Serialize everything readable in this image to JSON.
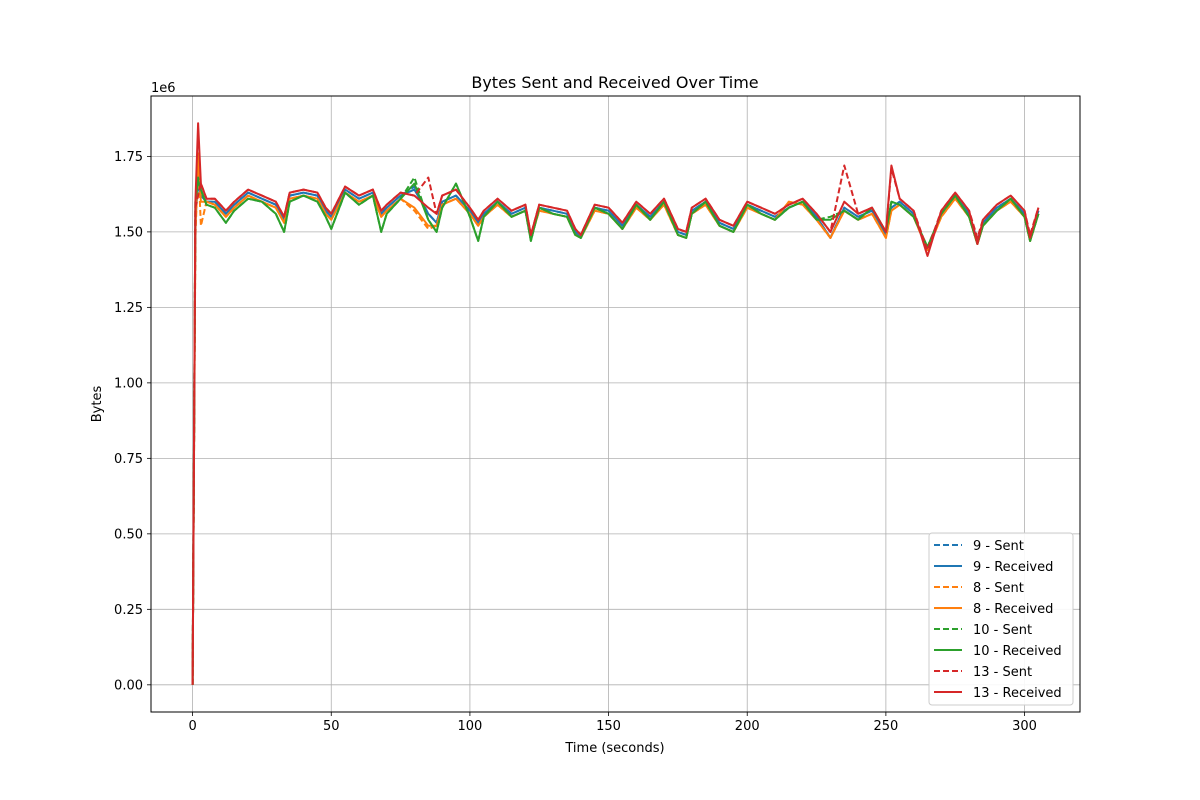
{
  "chart_data": {
    "type": "line",
    "title": "Bytes Sent and Received Over Time",
    "xlabel": "Time (seconds)",
    "ylabel": "Bytes",
    "y_offset_label": "1e6",
    "xlim": [
      -15,
      320
    ],
    "ylim": [
      -0.09,
      1.95
    ],
    "y_scale": 1000000,
    "x_ticks": [
      0,
      50,
      100,
      150,
      200,
      250,
      300
    ],
    "x_tick_labels": [
      "0",
      "50",
      "100",
      "150",
      "200",
      "250",
      "300"
    ],
    "y_ticks": [
      0,
      0.25,
      0.5,
      0.75,
      1.0,
      1.25,
      1.5,
      1.75
    ],
    "y_tick_labels": [
      "0.00",
      "0.25",
      "0.50",
      "0.75",
      "1.00",
      "1.25",
      "1.50",
      "1.75"
    ],
    "grid": true,
    "legend_position": "lower-right",
    "x": [
      0,
      1,
      2,
      3,
      5,
      8,
      12,
      15,
      20,
      25,
      30,
      33,
      35,
      40,
      45,
      48,
      50,
      55,
      60,
      65,
      68,
      70,
      75,
      80,
      85,
      88,
      90,
      95,
      100,
      103,
      105,
      110,
      115,
      120,
      122,
      125,
      130,
      135,
      138,
      140,
      145,
      150,
      155,
      160,
      165,
      170,
      175,
      178,
      180,
      185,
      190,
      195,
      200,
      205,
      210,
      215,
      220,
      225,
      230,
      235,
      240,
      245,
      250,
      252,
      255,
      260,
      265,
      270,
      275,
      280,
      283,
      285,
      290,
      295,
      300,
      302,
      305
    ],
    "series": [
      {
        "name": "9 - Sent",
        "color": "#1f77b4",
        "dash": true,
        "values": [
          0,
          1.55,
          1.66,
          1.62,
          1.6,
          1.6,
          1.56,
          1.59,
          1.63,
          1.61,
          1.59,
          1.54,
          1.62,
          1.63,
          1.62,
          1.57,
          1.55,
          1.64,
          1.61,
          1.63,
          1.56,
          1.58,
          1.62,
          1.65,
          1.56,
          1.53,
          1.6,
          1.62,
          1.57,
          1.53,
          1.56,
          1.6,
          1.56,
          1.58,
          1.48,
          1.58,
          1.57,
          1.56,
          1.5,
          1.48,
          1.58,
          1.57,
          1.52,
          1.59,
          1.55,
          1.6,
          1.5,
          1.49,
          1.57,
          1.6,
          1.53,
          1.51,
          1.59,
          1.57,
          1.55,
          1.58,
          1.6,
          1.55,
          1.48,
          1.58,
          1.55,
          1.57,
          1.49,
          1.58,
          1.6,
          1.56,
          1.44,
          1.56,
          1.62,
          1.56,
          1.47,
          1.53,
          1.58,
          1.61,
          1.56,
          1.48,
          1.57
        ]
      },
      {
        "name": "9 - Received",
        "color": "#1f77b4",
        "dash": false,
        "values": [
          0,
          1.54,
          1.66,
          1.62,
          1.6,
          1.6,
          1.56,
          1.59,
          1.63,
          1.61,
          1.59,
          1.54,
          1.62,
          1.63,
          1.62,
          1.57,
          1.55,
          1.64,
          1.61,
          1.63,
          1.56,
          1.58,
          1.62,
          1.64,
          1.56,
          1.53,
          1.6,
          1.62,
          1.57,
          1.53,
          1.56,
          1.6,
          1.56,
          1.58,
          1.48,
          1.58,
          1.57,
          1.56,
          1.5,
          1.48,
          1.58,
          1.57,
          1.52,
          1.59,
          1.55,
          1.6,
          1.5,
          1.49,
          1.57,
          1.6,
          1.53,
          1.51,
          1.59,
          1.57,
          1.55,
          1.58,
          1.6,
          1.55,
          1.48,
          1.58,
          1.55,
          1.57,
          1.49,
          1.58,
          1.6,
          1.56,
          1.44,
          1.56,
          1.62,
          1.56,
          1.47,
          1.53,
          1.58,
          1.61,
          1.56,
          1.48,
          1.57
        ]
      },
      {
        "name": "8 - Sent",
        "color": "#ff7f0e",
        "dash": true,
        "values": [
          0,
          1.48,
          1.74,
          1.52,
          1.6,
          1.59,
          1.55,
          1.58,
          1.62,
          1.6,
          1.58,
          1.53,
          1.61,
          1.62,
          1.61,
          1.56,
          1.54,
          1.63,
          1.6,
          1.62,
          1.55,
          1.57,
          1.61,
          1.57,
          1.51,
          1.52,
          1.59,
          1.61,
          1.56,
          1.52,
          1.55,
          1.59,
          1.55,
          1.57,
          1.48,
          1.57,
          1.56,
          1.55,
          1.49,
          1.48,
          1.57,
          1.56,
          1.51,
          1.58,
          1.54,
          1.59,
          1.49,
          1.48,
          1.56,
          1.59,
          1.52,
          1.5,
          1.58,
          1.56,
          1.54,
          1.6,
          1.59,
          1.54,
          1.48,
          1.57,
          1.54,
          1.56,
          1.48,
          1.57,
          1.59,
          1.55,
          1.44,
          1.55,
          1.61,
          1.55,
          1.46,
          1.52,
          1.57,
          1.6,
          1.55,
          1.47,
          1.56
        ]
      },
      {
        "name": "8 - Received",
        "color": "#ff7f0e",
        "dash": false,
        "values": [
          0,
          1.5,
          1.76,
          1.6,
          1.6,
          1.59,
          1.55,
          1.58,
          1.62,
          1.6,
          1.58,
          1.53,
          1.61,
          1.62,
          1.61,
          1.56,
          1.54,
          1.63,
          1.6,
          1.62,
          1.55,
          1.57,
          1.61,
          1.58,
          1.52,
          1.52,
          1.59,
          1.61,
          1.56,
          1.52,
          1.55,
          1.59,
          1.55,
          1.57,
          1.48,
          1.57,
          1.56,
          1.55,
          1.49,
          1.48,
          1.57,
          1.56,
          1.51,
          1.58,
          1.54,
          1.59,
          1.49,
          1.48,
          1.56,
          1.59,
          1.52,
          1.5,
          1.58,
          1.56,
          1.54,
          1.6,
          1.59,
          1.54,
          1.48,
          1.57,
          1.54,
          1.56,
          1.48,
          1.57,
          1.59,
          1.55,
          1.44,
          1.55,
          1.61,
          1.55,
          1.46,
          1.52,
          1.57,
          1.6,
          1.55,
          1.47,
          1.56
        ]
      },
      {
        "name": "10 - Sent",
        "color": "#2ca02c",
        "dash": true,
        "values": [
          0,
          1.6,
          1.68,
          1.64,
          1.59,
          1.58,
          1.53,
          1.57,
          1.61,
          1.6,
          1.56,
          1.5,
          1.6,
          1.62,
          1.6,
          1.55,
          1.51,
          1.63,
          1.59,
          1.62,
          1.5,
          1.56,
          1.61,
          1.68,
          1.54,
          1.5,
          1.58,
          1.66,
          1.55,
          1.47,
          1.55,
          1.6,
          1.55,
          1.57,
          1.47,
          1.58,
          1.56,
          1.55,
          1.49,
          1.48,
          1.58,
          1.56,
          1.51,
          1.59,
          1.54,
          1.6,
          1.49,
          1.48,
          1.56,
          1.6,
          1.52,
          1.5,
          1.59,
          1.56,
          1.54,
          1.58,
          1.6,
          1.54,
          1.55,
          1.57,
          1.54,
          1.58,
          1.5,
          1.6,
          1.59,
          1.55,
          1.45,
          1.56,
          1.62,
          1.55,
          1.46,
          1.52,
          1.57,
          1.61,
          1.55,
          1.47,
          1.56
        ]
      },
      {
        "name": "10 - Received",
        "color": "#2ca02c",
        "dash": false,
        "values": [
          0,
          1.6,
          1.67,
          1.64,
          1.59,
          1.58,
          1.53,
          1.57,
          1.61,
          1.6,
          1.56,
          1.5,
          1.6,
          1.62,
          1.6,
          1.55,
          1.51,
          1.63,
          1.59,
          1.62,
          1.5,
          1.56,
          1.61,
          1.66,
          1.54,
          1.5,
          1.58,
          1.66,
          1.55,
          1.47,
          1.55,
          1.6,
          1.55,
          1.57,
          1.47,
          1.58,
          1.56,
          1.55,
          1.49,
          1.48,
          1.58,
          1.56,
          1.51,
          1.59,
          1.54,
          1.6,
          1.49,
          1.48,
          1.56,
          1.6,
          1.52,
          1.5,
          1.59,
          1.56,
          1.54,
          1.58,
          1.6,
          1.54,
          1.54,
          1.57,
          1.54,
          1.58,
          1.5,
          1.6,
          1.59,
          1.55,
          1.45,
          1.56,
          1.62,
          1.55,
          1.46,
          1.52,
          1.57,
          1.61,
          1.55,
          1.47,
          1.56
        ]
      },
      {
        "name": "13 - Sent",
        "color": "#d62728",
        "dash": true,
        "values": [
          0,
          1.58,
          1.62,
          1.66,
          1.61,
          1.61,
          1.57,
          1.6,
          1.64,
          1.62,
          1.6,
          1.55,
          1.63,
          1.64,
          1.63,
          1.58,
          1.56,
          1.65,
          1.62,
          1.64,
          1.57,
          1.59,
          1.63,
          1.62,
          1.68,
          1.56,
          1.62,
          1.64,
          1.58,
          1.54,
          1.57,
          1.61,
          1.57,
          1.59,
          1.49,
          1.59,
          1.58,
          1.57,
          1.51,
          1.49,
          1.59,
          1.58,
          1.53,
          1.6,
          1.56,
          1.61,
          1.51,
          1.5,
          1.58,
          1.61,
          1.54,
          1.52,
          1.6,
          1.58,
          1.56,
          1.59,
          1.61,
          1.56,
          1.5,
          1.72,
          1.56,
          1.58,
          1.5,
          1.71,
          1.61,
          1.57,
          1.44,
          1.57,
          1.63,
          1.57,
          1.48,
          1.54,
          1.59,
          1.62,
          1.57,
          1.49,
          1.58
        ]
      },
      {
        "name": "13 - Received",
        "color": "#d62728",
        "dash": false,
        "values": [
          0,
          1.6,
          1.86,
          1.66,
          1.61,
          1.61,
          1.57,
          1.6,
          1.64,
          1.62,
          1.6,
          1.55,
          1.63,
          1.64,
          1.63,
          1.58,
          1.56,
          1.65,
          1.62,
          1.64,
          1.57,
          1.59,
          1.63,
          1.62,
          1.58,
          1.56,
          1.62,
          1.64,
          1.58,
          1.54,
          1.57,
          1.61,
          1.57,
          1.59,
          1.49,
          1.59,
          1.58,
          1.57,
          1.51,
          1.49,
          1.59,
          1.58,
          1.53,
          1.6,
          1.56,
          1.61,
          1.51,
          1.5,
          1.58,
          1.61,
          1.54,
          1.52,
          1.6,
          1.58,
          1.56,
          1.59,
          1.61,
          1.56,
          1.5,
          1.6,
          1.56,
          1.58,
          1.5,
          1.72,
          1.61,
          1.57,
          1.42,
          1.57,
          1.63,
          1.57,
          1.46,
          1.54,
          1.59,
          1.62,
          1.57,
          1.48,
          1.58
        ]
      }
    ]
  }
}
